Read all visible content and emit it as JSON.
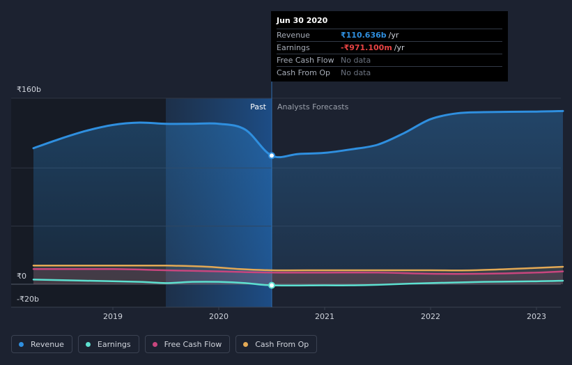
{
  "chart_data": {
    "type": "area",
    "y_tick_labels": [
      "₹160b",
      "₹0",
      "-₹20b"
    ],
    "y_ticks": [
      160,
      0,
      -20
    ],
    "ylim": [
      -20,
      160
    ],
    "x_tick_labels": [
      "2019",
      "2020",
      "2021",
      "2022",
      "2023"
    ],
    "x_ticks": [
      2019,
      2020,
      2021,
      2022,
      2023
    ],
    "xlim": [
      2017.9,
      2023.25
    ],
    "past_label": "Past",
    "forecast_label": "Analysts Forecasts",
    "past_end": 2020.5,
    "shade_start": 2019.5,
    "series": [
      {
        "name": "Revenue",
        "color": "#2f8fdf",
        "x": [
          2018.25,
          2018.5,
          2018.75,
          2019.0,
          2019.25,
          2019.5,
          2019.75,
          2020.0,
          2020.25,
          2020.5,
          2020.75,
          2021.0,
          2021.25,
          2021.5,
          2021.75,
          2022.0,
          2022.25,
          2022.5,
          2023.0,
          2023.25
        ],
        "values": [
          117,
          125,
          132,
          137,
          139,
          138,
          138,
          138,
          133,
          110.6,
          112,
          113,
          116,
          120,
          130,
          142,
          147,
          148,
          148.5,
          149
        ]
      },
      {
        "name": "Earnings",
        "color": "#5de0d0",
        "x": [
          2018.25,
          2018.75,
          2019.25,
          2019.5,
          2019.75,
          2020.0,
          2020.25,
          2020.5,
          2021.0,
          2021.25,
          2021.5,
          2022.0,
          2022.5,
          2023.0,
          2023.25
        ],
        "values": [
          4,
          3,
          2,
          1,
          2,
          2,
          1,
          -0.97,
          -1,
          -1,
          -0.5,
          1,
          2,
          2.5,
          3
        ]
      },
      {
        "name": "Free Cash Flow",
        "color": "#c8467e",
        "x": [
          2018.25,
          2019.0,
          2019.5,
          2020.0,
          2020.5,
          2021.0,
          2021.5,
          2022.0,
          2022.5,
          2023.0,
          2023.25
        ],
        "values": [
          13,
          13,
          12,
          11,
          10,
          10,
          10,
          9,
          9,
          10,
          11
        ]
      },
      {
        "name": "Cash From Op",
        "color": "#e3a955",
        "x": [
          2018.25,
          2019.0,
          2019.5,
          2019.9,
          2020.2,
          2020.5,
          2021.0,
          2021.5,
          2022.0,
          2022.4,
          2023.0,
          2023.25
        ],
        "values": [
          16,
          16,
          16,
          15,
          13,
          12,
          12,
          12,
          12,
          12,
          14,
          15
        ]
      }
    ],
    "highlight": {
      "x": 2020.5,
      "revenue": 110.6,
      "earnings": -0.97
    },
    "tooltip": {
      "date": "Jun 30 2020",
      "rows": [
        {
          "label": "Revenue",
          "value": "₹110.636b",
          "unit": "/yr",
          "color": "#2f8fdf"
        },
        {
          "label": "Earnings",
          "value": "-₹971.100m",
          "unit": "/yr",
          "color": "#e84343"
        },
        {
          "label": "Free Cash Flow",
          "value": "No data",
          "unit": "",
          "color": "#6c7380"
        },
        {
          "label": "Cash From Op",
          "value": "No data",
          "unit": "",
          "color": "#6c7380"
        }
      ]
    },
    "legend": [
      {
        "name": "Revenue",
        "color": "#2f8fdf"
      },
      {
        "name": "Earnings",
        "color": "#5de0d0"
      },
      {
        "name": "Free Cash Flow",
        "color": "#c8467e"
      },
      {
        "name": "Cash From Op",
        "color": "#e3a955"
      }
    ]
  }
}
